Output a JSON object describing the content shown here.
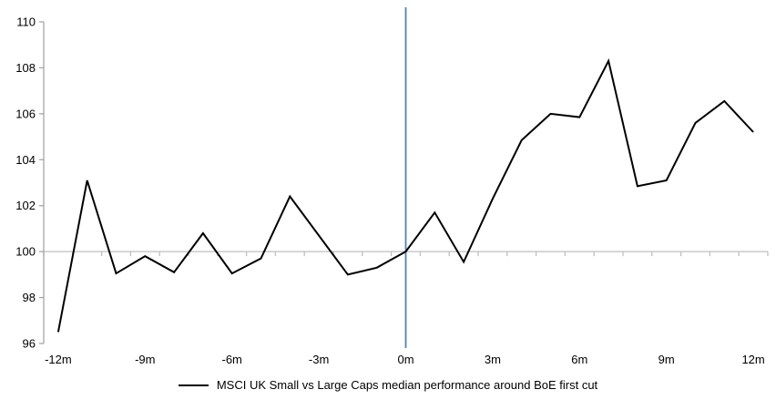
{
  "chart_data": {
    "type": "line",
    "title": "",
    "xlabel": "",
    "ylabel": "",
    "x_unit": "months relative to BoE first cut",
    "xlim": [
      -12.5,
      12.5
    ],
    "ylim": [
      96,
      110
    ],
    "ytick_step": 2,
    "axis_cross_value": 100,
    "grid": false,
    "legend_position": "bottom-center",
    "x": [
      -12,
      -11,
      -10,
      -9,
      -8,
      -7,
      -6,
      -5,
      -4,
      -3,
      -2,
      -1,
      0,
      1,
      2,
      3,
      4,
      5,
      6,
      7,
      8,
      9,
      10,
      11,
      12
    ],
    "series": [
      {
        "name": "MSCI UK Small vs Large Caps median performance around BoE first cut",
        "color": "#000000",
        "values": [
          96.5,
          103.1,
          99.05,
          99.8,
          99.1,
          100.8,
          99.05,
          99.7,
          102.4,
          100.7,
          99.0,
          99.3,
          100.0,
          101.7,
          99.55,
          102.3,
          104.85,
          106.0,
          105.85,
          108.3,
          102.85,
          103.1,
          105.6,
          106.55,
          105.2
        ]
      }
    ],
    "x_axis_labels": [
      {
        "month": -12,
        "label": "-12m"
      },
      {
        "month": -9,
        "label": "-9m"
      },
      {
        "month": -6,
        "label": "-6m"
      },
      {
        "month": -3,
        "label": "-3m"
      },
      {
        "month": 0,
        "label": "0m"
      },
      {
        "month": 3,
        "label": "3m"
      },
      {
        "month": 6,
        "label": "6m"
      },
      {
        "month": 9,
        "label": "9m"
      },
      {
        "month": 12,
        "label": "12m"
      }
    ],
    "event_line": {
      "x": 0,
      "color": "#4F81BD"
    },
    "colors": {
      "series": "#000000",
      "event_line": "#4F81BD",
      "y_axis": "#A6A6A6",
      "x_axis": "#BFBFBF",
      "text": "#000000"
    }
  }
}
